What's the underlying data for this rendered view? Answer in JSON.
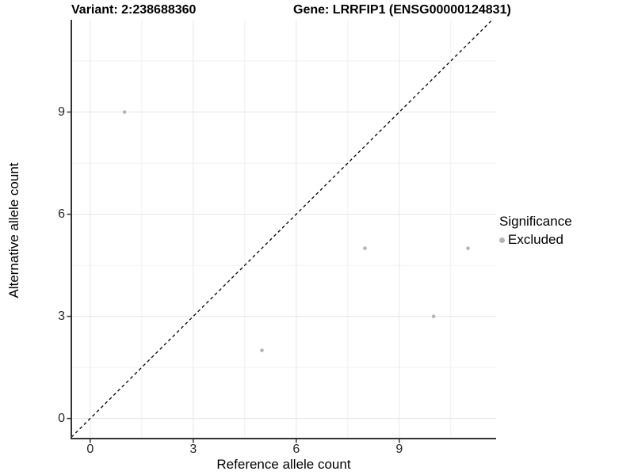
{
  "chart_data": {
    "type": "scatter",
    "title_left": "Variant: 2:238688360",
    "title_right": "Gene: LRRFIP1 (ENSG00000124831)",
    "xlabel": "Reference allele count",
    "ylabel": "Alternative allele count",
    "xlim": [
      -0.55,
      11.82
    ],
    "ylim": [
      -0.59,
      11.71
    ],
    "x_major_ticks": [
      0,
      3,
      6,
      9
    ],
    "x_minor_ticks": [
      1.5,
      4.5,
      7.5,
      10.5
    ],
    "y_major_ticks": [
      0,
      3,
      6,
      9
    ],
    "y_minor_ticks": [
      1.5,
      4.5,
      7.5,
      10.5
    ],
    "grid": true,
    "points": [
      {
        "x": 1,
        "y": 9,
        "significance": "Excluded"
      },
      {
        "x": 5,
        "y": 2,
        "significance": "Excluded"
      },
      {
        "x": 8,
        "y": 5,
        "significance": "Excluded"
      },
      {
        "x": 10,
        "y": 3,
        "significance": "Excluded"
      },
      {
        "x": 11,
        "y": 5,
        "significance": "Excluded"
      }
    ],
    "identity_line": {
      "slope": 1,
      "intercept": 0,
      "style": "dashed",
      "color": "#000000"
    },
    "legend": {
      "title": "Significance",
      "position": "right",
      "items": [
        {
          "label": "Excluded",
          "color": "#b5b5b5"
        }
      ]
    },
    "colors": {
      "point": "#b5b5b5",
      "grid_major": "#e6e6e6",
      "grid_minor": "#f0f0f0",
      "axis": "#333333",
      "tick_label": "#262626"
    }
  }
}
